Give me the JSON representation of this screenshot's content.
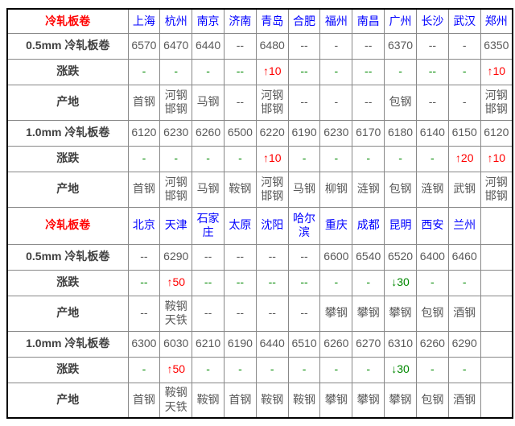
{
  "colors": {
    "section_title": "#ff0000",
    "city_link": "#0000ff",
    "row_label": "#404040",
    "value_text": "#595959",
    "change_up": "#ff0000",
    "change_down": "#008800",
    "grid_border": "#888888",
    "outer_border": "#000000"
  },
  "icons": {
    "up_arrow": "↑",
    "down_arrow": "↓"
  },
  "table": {
    "sections": [
      {
        "header": {
          "label": "冷轧板卷",
          "cities": [
            "上海",
            "杭州",
            "南京",
            "济南",
            "青岛",
            "合肥",
            "福州",
            "南昌",
            "广州",
            "长沙",
            "武汉",
            "郑州"
          ]
        },
        "rows": [
          {
            "label": "0.5mm 冷轧板卷",
            "type": "price",
            "cells": [
              "6570",
              "6470",
              "6440",
              "--",
              "6480",
              "--",
              "-",
              "--",
              "6370",
              "--",
              "-",
              "6350"
            ]
          },
          {
            "label": "涨跌",
            "type": "change",
            "cells": [
              "-",
              "-",
              "-",
              "--",
              "↑10",
              "--",
              "-",
              "--",
              "-",
              "--",
              "-",
              "↑10"
            ]
          },
          {
            "label": "产地",
            "type": "origin",
            "cells": [
              "首钢",
              "河钢邯钢",
              "马钢",
              "--",
              "河钢邯钢",
              "--",
              "-",
              "--",
              "包钢",
              "--",
              "-",
              "河钢邯钢"
            ]
          },
          {
            "label": "1.0mm 冷轧板卷",
            "type": "price",
            "cells": [
              "6120",
              "6230",
              "6260",
              "6500",
              "6220",
              "6190",
              "6230",
              "6170",
              "6180",
              "6140",
              "6150",
              "6120"
            ]
          },
          {
            "label": "涨跌",
            "type": "change",
            "cells": [
              "-",
              "-",
              "-",
              "-",
              "↑10",
              "-",
              "-",
              "-",
              "-",
              "-",
              "↑20",
              "↑10"
            ]
          },
          {
            "label": "产地",
            "type": "origin",
            "cells": [
              "首钢",
              "河钢邯钢",
              "马钢",
              "鞍钢",
              "河钢邯钢",
              "马钢",
              "柳钢",
              "涟钢",
              "包钢",
              "涟钢",
              "武钢",
              "河钢邯钢"
            ]
          }
        ]
      },
      {
        "header": {
          "label": "冷轧板卷",
          "cities": [
            "北京",
            "天津",
            "石家庄",
            "太原",
            "沈阳",
            "哈尔滨",
            "重庆",
            "成都",
            "昆明",
            "西安",
            "兰州",
            ""
          ]
        },
        "rows": [
          {
            "label": "0.5mm 冷轧板卷",
            "type": "price",
            "cells": [
              "--",
              "6290",
              "--",
              "--",
              "--",
              "--",
              "6600",
              "6540",
              "6520",
              "6400",
              "6460",
              ""
            ]
          },
          {
            "label": "涨跌",
            "type": "change",
            "cells": [
              "--",
              "↑50",
              "--",
              "--",
              "--",
              "--",
              "-",
              "-",
              "↓30",
              "-",
              "-",
              ""
            ]
          },
          {
            "label": "产地",
            "type": "origin",
            "cells": [
              "--",
              "鞍钢天铁",
              "--",
              "--",
              "--",
              "--",
              "攀钢",
              "攀钢",
              "攀钢",
              "包钢",
              "酒钢",
              ""
            ]
          },
          {
            "label": "1.0mm 冷轧板卷",
            "type": "price",
            "cells": [
              "6300",
              "6030",
              "6210",
              "6190",
              "6440",
              "6510",
              "6260",
              "6270",
              "6310",
              "6260",
              "6290",
              ""
            ]
          },
          {
            "label": "涨跌",
            "type": "change",
            "cells": [
              "-",
              "↑50",
              "-",
              "-",
              "-",
              "-",
              "-",
              "-",
              "↓30",
              "-",
              "-",
              ""
            ]
          },
          {
            "label": "产地",
            "type": "origin",
            "cells": [
              "首钢",
              "鞍钢天铁",
              "鞍钢",
              "首钢",
              "鞍钢",
              "鞍钢",
              "攀钢",
              "攀钢",
              "攀钢",
              "包钢",
              "酒钢",
              ""
            ]
          }
        ]
      }
    ]
  }
}
